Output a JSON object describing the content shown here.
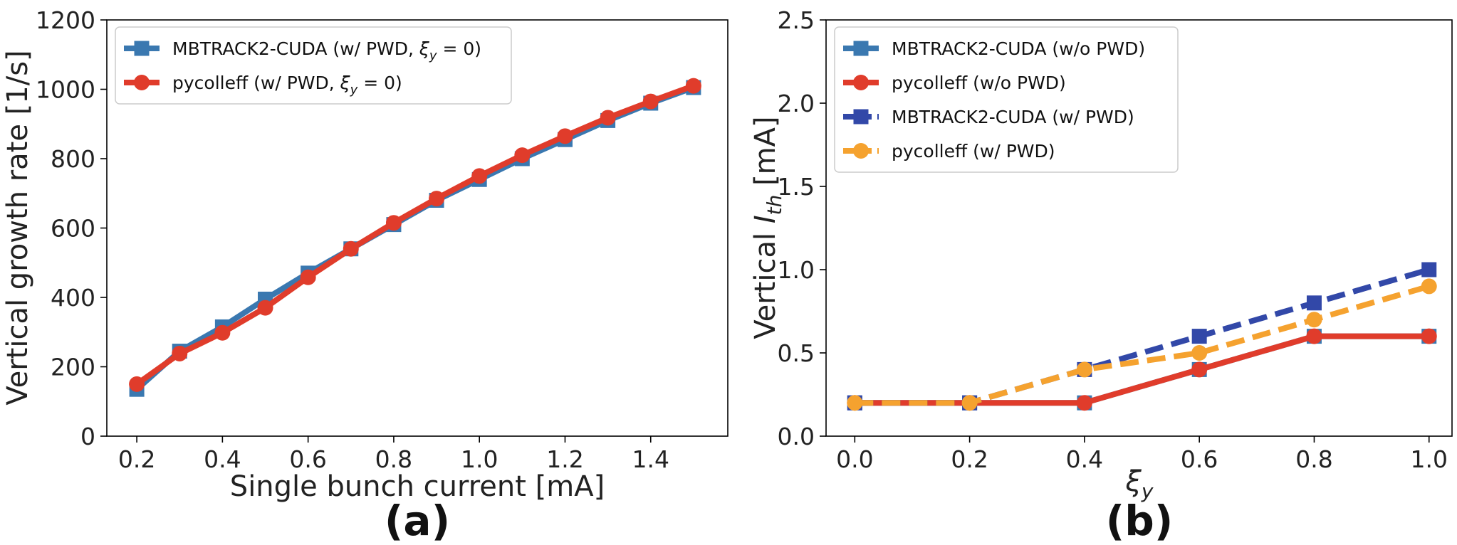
{
  "chart_data": [
    {
      "type": "line",
      "panel_label": "(a)",
      "xlabel": "Single bunch current [mA]",
      "ylabel": "Vertical growth rate [1/s]",
      "xlim": [
        0.13,
        1.58
      ],
      "ylim": [
        0,
        1200
      ],
      "xticks": [
        "0.2",
        "0.4",
        "0.6",
        "0.8",
        "1.0",
        "1.2",
        "1.4"
      ],
      "xtick_values": [
        0.2,
        0.4,
        0.6,
        0.8,
        1.0,
        1.2,
        1.4
      ],
      "yticks": [
        "0",
        "200",
        "400",
        "600",
        "800",
        "1000",
        "1200"
      ],
      "ytick_values": [
        0,
        200,
        400,
        600,
        800,
        1000,
        1200
      ],
      "legend_position": "top-left",
      "series": [
        {
          "name": "MBTRACK2-CUDA (w/ PWD, ξ_y = 0)",
          "label_main": "MBTRACK2-CUDA (w/ PWD, ",
          "label_sym": "ξ",
          "label_sub": "y",
          "label_tail": " = 0)",
          "color": "#3a78b0",
          "marker": "square",
          "dashed": false,
          "x": [
            0.2,
            0.3,
            0.4,
            0.5,
            0.6,
            0.7,
            0.8,
            0.9,
            1.0,
            1.1,
            1.2,
            1.3,
            1.4,
            1.5
          ],
          "values": [
            135,
            245,
            315,
            395,
            470,
            540,
            610,
            680,
            740,
            800,
            855,
            910,
            960,
            1005
          ]
        },
        {
          "name": "pycolleff (w/ PWD, ξ_y = 0)",
          "label_main": "pycolleff (w/ PWD, ",
          "label_sym": "ξ",
          "label_sub": "y",
          "label_tail": " = 0)",
          "color": "#e03c2b",
          "marker": "circle",
          "dashed": false,
          "x": [
            0.2,
            0.3,
            0.4,
            0.5,
            0.6,
            0.7,
            0.8,
            0.9,
            1.0,
            1.1,
            1.2,
            1.3,
            1.4,
            1.5
          ],
          "values": [
            150,
            238,
            298,
            370,
            458,
            540,
            615,
            685,
            750,
            810,
            865,
            918,
            965,
            1010
          ]
        }
      ]
    },
    {
      "type": "line",
      "panel_label": "(b)",
      "xlabel_sym": "ξ",
      "xlabel_sub": "y",
      "ylabel_main": "Vertical ",
      "ylabel_sym": "I",
      "ylabel_sub": "th",
      "ylabel_tail": " [mA]",
      "xlim": [
        -0.05,
        1.04
      ],
      "ylim": [
        0,
        2.5
      ],
      "xticks": [
        "0.0",
        "0.2",
        "0.4",
        "0.6",
        "0.8",
        "1.0"
      ],
      "xtick_values": [
        0.0,
        0.2,
        0.4,
        0.6,
        0.8,
        1.0
      ],
      "yticks": [
        "0.0",
        "0.5",
        "1.0",
        "1.5",
        "2.0",
        "2.5"
      ],
      "ytick_values": [
        0.0,
        0.5,
        1.0,
        1.5,
        2.0,
        2.5
      ],
      "legend_position": "top-left",
      "series": [
        {
          "name": "MBTRACK2-CUDA (w/o PWD)",
          "color": "#3a78b0",
          "marker": "square",
          "dashed": false,
          "x": [
            0.0,
            0.2,
            0.4,
            0.6,
            0.8,
            1.0
          ],
          "values": [
            0.2,
            0.2,
            0.2,
            0.4,
            0.6,
            0.6
          ]
        },
        {
          "name": "pycolleff (w/o PWD)",
          "color": "#e03c2b",
          "marker": "circle",
          "dashed": false,
          "x": [
            0.0,
            0.2,
            0.4,
            0.6,
            0.8,
            1.0
          ],
          "values": [
            0.2,
            0.2,
            0.2,
            0.4,
            0.6,
            0.6
          ]
        },
        {
          "name": "MBTRACK2-CUDA (w/ PWD)",
          "color": "#3248a8",
          "marker": "square",
          "dashed": true,
          "x": [
            0.0,
            0.2,
            0.4,
            0.6,
            0.8,
            1.0
          ],
          "values": [
            0.2,
            0.2,
            0.4,
            0.6,
            0.8,
            1.0
          ]
        },
        {
          "name": "pycolleff (w/ PWD)",
          "color": "#f5a22f",
          "marker": "circle",
          "dashed": true,
          "x": [
            0.0,
            0.2,
            0.4,
            0.6,
            0.8,
            1.0
          ],
          "values": [
            0.2,
            0.2,
            0.4,
            0.5,
            0.7,
            0.9
          ]
        }
      ]
    }
  ]
}
